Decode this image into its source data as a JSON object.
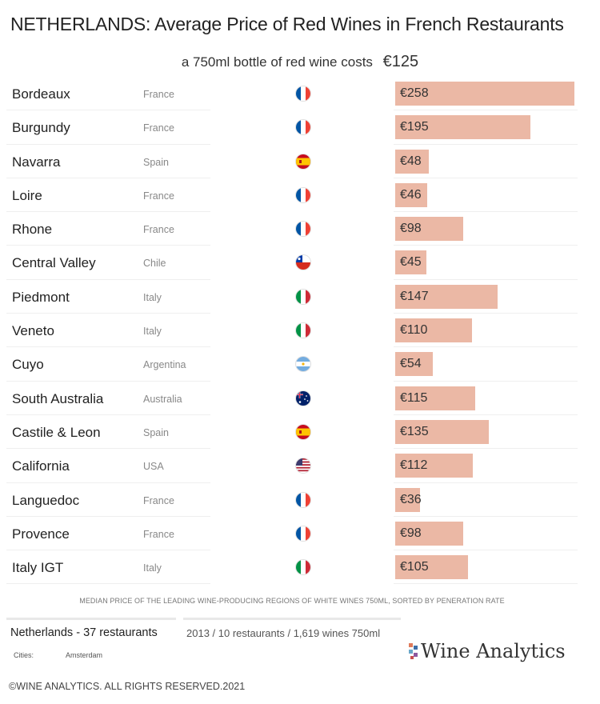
{
  "title": "NETHERLANDS: Average Price of Red Wines in French Restaurants",
  "subtitle": {
    "text": "a 750ml bottle of red wine costs",
    "average": "€125"
  },
  "bar_color": "#ebb8a5",
  "chart_data": {
    "type": "bar",
    "orientation": "horizontal",
    "title": "NETHERLANDS: Average Price of Red Wines in French Restaurants",
    "categories": [
      "Bordeaux",
      "Burgundy",
      "Navarra",
      "Loire",
      "Rhone",
      "Central Valley",
      "Piedmont",
      "Veneto",
      "Cuyo",
      "South Australia",
      "Castile & Leon",
      "California",
      "Languedoc",
      "Provence",
      "Italy IGT"
    ],
    "countries": [
      "France",
      "France",
      "Spain",
      "France",
      "France",
      "Chile",
      "Italy",
      "Italy",
      "Argentina",
      "Australia",
      "Spain",
      "USA",
      "France",
      "France",
      "Italy"
    ],
    "flags": [
      "france-flag",
      "france-flag",
      "spain-flag",
      "france-flag",
      "france-flag",
      "chile-flag",
      "italy-flag",
      "italy-flag",
      "argentina-flag",
      "australia-flag",
      "spain-flag",
      "usa-flag",
      "france-flag",
      "france-flag",
      "italy-flag"
    ],
    "values": [
      258,
      195,
      48,
      46,
      98,
      45,
      147,
      110,
      54,
      115,
      135,
      112,
      36,
      98,
      105
    ],
    "value_labels": [
      "€258",
      "€195",
      "€48",
      "€46",
      "€98",
      "€45",
      "€147",
      "€110",
      "€54",
      "€115",
      "€135",
      "€112",
      "€36",
      "€98",
      "€105"
    ],
    "xlim": [
      0,
      258
    ],
    "grid": false,
    "legend": "none"
  },
  "footnote": "MEDIAN PRICE OF THE LEADING WINE-PRODUCING REGIONS OF WHITE WINES 750ML, SORTED BY PENERATION RATE",
  "market": "Netherlands - 37 restaurants",
  "sample": "2013 / 10 restaurants  / 1,619 wines 750ml",
  "cities": {
    "label": "Cities:",
    "value": "Amsterdam"
  },
  "brand": {
    "name": "Wine Analytics",
    "icon": "wine-analytics-logo-icon"
  },
  "copyright": "©WINE ANALYTICS. ALL RIGHTS RESERVED.2021"
}
